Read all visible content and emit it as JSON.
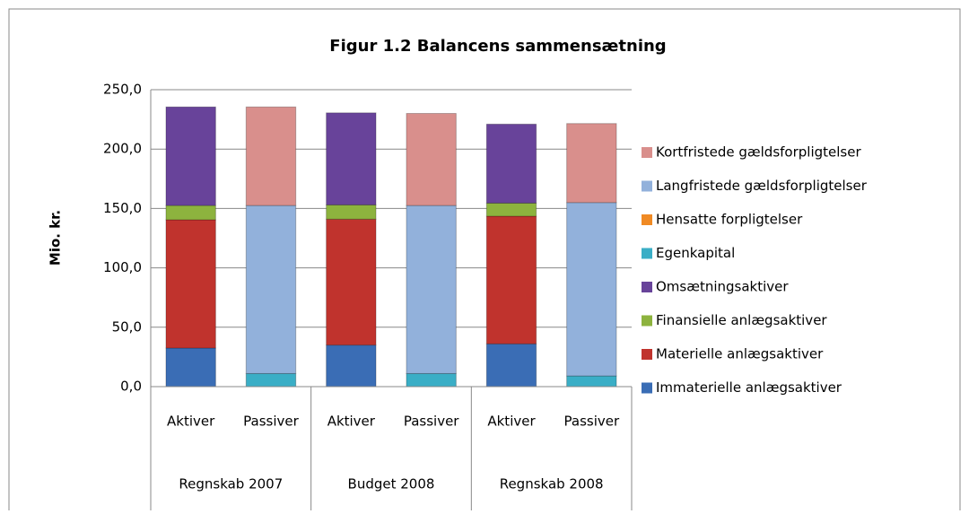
{
  "chart_data": {
    "type": "stacked_bar",
    "title": "Figur 1.2 Balancens sammensætning",
    "y_label": "Mio. kr.",
    "categories": [
      "Aktiver",
      "Passiver",
      "Aktiver",
      "Passiver",
      "Aktiver",
      "Passiver"
    ],
    "groups": [
      "Regnskab 2007",
      "Budget 2008",
      "Regnskab 2008"
    ],
    "ylim": [
      0,
      250
    ],
    "yticks": [
      {
        "value": 0,
        "label": "0,0"
      },
      {
        "value": 50,
        "label": "50,0"
      },
      {
        "value": 100,
        "label": "100,0"
      },
      {
        "value": 150,
        "label": "150,0"
      },
      {
        "value": 200,
        "label": "200,0"
      },
      {
        "value": 250,
        "label": "250,0"
      }
    ],
    "grid": true,
    "series": [
      {
        "name": "Immaterielle anlægsaktiver",
        "color": "#3a6db5",
        "values": [
          32.5,
          0,
          35,
          0,
          36,
          0
        ]
      },
      {
        "name": "Materielle anlægsaktiver",
        "color": "#c0332d",
        "values": [
          108,
          0,
          106,
          0,
          107.5,
          0
        ]
      },
      {
        "name": "Finansielle anlægsaktiver",
        "color": "#8db33e",
        "values": [
          12,
          0,
          12,
          0,
          11,
          0
        ]
      },
      {
        "name": "Omsætningsaktiver",
        "color": "#68439a",
        "values": [
          83,
          0,
          77.5,
          0,
          66.5,
          0
        ]
      },
      {
        "name": "Egenkapital",
        "color": "#3aaec6",
        "values": [
          0,
          11,
          0,
          11,
          0,
          9
        ]
      },
      {
        "name": "Hensatte forpligtelser",
        "color": "#f08a24",
        "values": [
          0,
          0,
          0,
          0,
          0,
          0
        ]
      },
      {
        "name": "Langfristede gældsforpligtelser",
        "color": "#92b1db",
        "values": [
          0,
          141.5,
          0,
          141.5,
          0,
          146
        ]
      },
      {
        "name": "Kortfristede gældsforpligtelser",
        "color": "#d98f8c",
        "values": [
          0,
          83,
          0,
          77.5,
          0,
          66.5
        ]
      }
    ]
  }
}
